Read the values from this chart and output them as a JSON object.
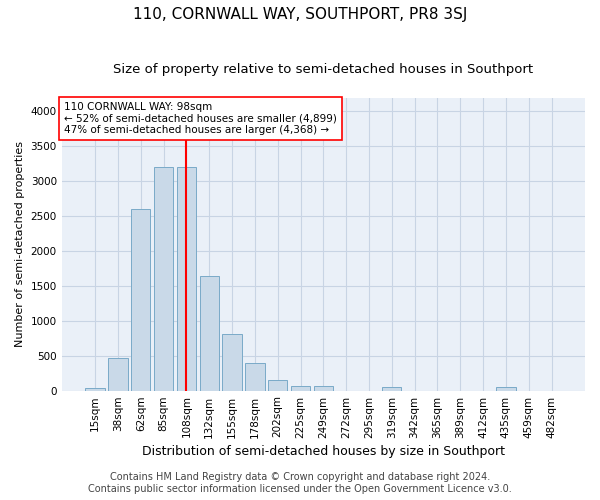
{
  "title": "110, CORNWALL WAY, SOUTHPORT, PR8 3SJ",
  "subtitle": "Size of property relative to semi-detached houses in Southport",
  "xlabel": "Distribution of semi-detached houses by size in Southport",
  "ylabel": "Number of semi-detached properties",
  "bar_labels": [
    "15sqm",
    "38sqm",
    "62sqm",
    "85sqm",
    "108sqm",
    "132sqm",
    "155sqm",
    "178sqm",
    "202sqm",
    "225sqm",
    "249sqm",
    "272sqm",
    "295sqm",
    "319sqm",
    "342sqm",
    "365sqm",
    "389sqm",
    "412sqm",
    "435sqm",
    "459sqm",
    "482sqm"
  ],
  "bar_values": [
    30,
    460,
    2600,
    3200,
    3200,
    1640,
    810,
    390,
    150,
    70,
    70,
    0,
    0,
    55,
    0,
    0,
    0,
    0,
    55,
    0,
    0
  ],
  "bar_color": "#c9d9e8",
  "bar_edgecolor": "#7aaac8",
  "vline_x": 4.0,
  "annotation_text": "110 CORNWALL WAY: 98sqm\n← 52% of semi-detached houses are smaller (4,899)\n47% of semi-detached houses are larger (4,368) →",
  "annotation_box_color": "white",
  "annotation_box_edgecolor": "red",
  "vline_color": "red",
  "ylim": [
    0,
    4200
  ],
  "yticks": [
    0,
    500,
    1000,
    1500,
    2000,
    2500,
    3000,
    3500,
    4000
  ],
  "grid_color": "#c8d4e4",
  "background_color": "#eaf0f8",
  "footer_line1": "Contains HM Land Registry data © Crown copyright and database right 2024.",
  "footer_line2": "Contains public sector information licensed under the Open Government Licence v3.0.",
  "title_fontsize": 11,
  "subtitle_fontsize": 9.5,
  "xlabel_fontsize": 9,
  "ylabel_fontsize": 8,
  "tick_fontsize": 7.5,
  "annotation_fontsize": 7.5,
  "footer_fontsize": 7
}
